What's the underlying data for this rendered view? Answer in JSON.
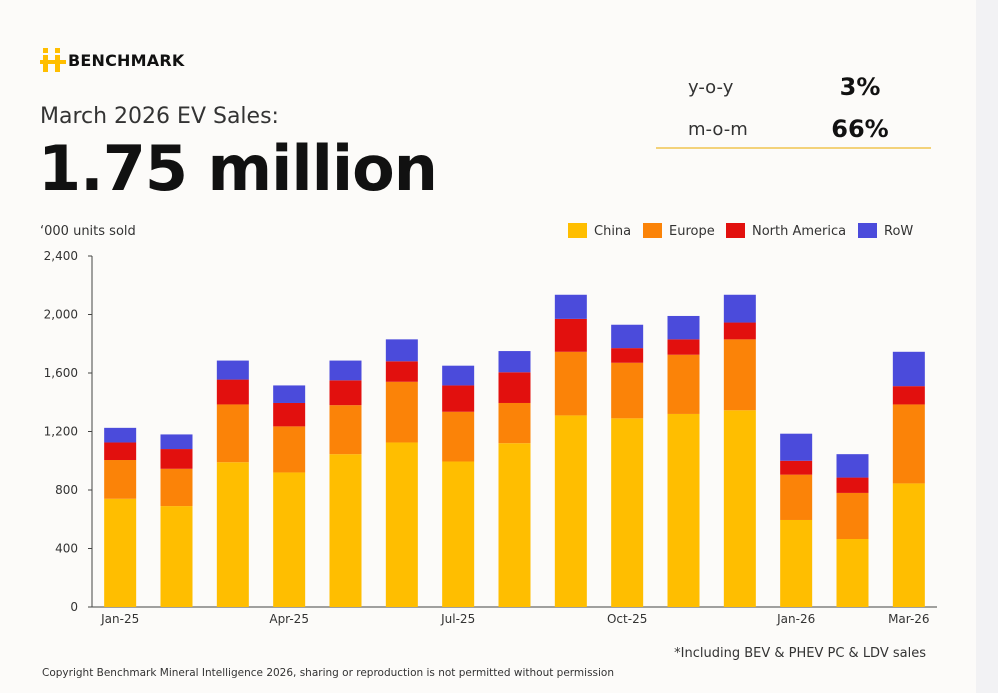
{
  "brand": {
    "name": "BENCHMARK"
  },
  "header": {
    "subtitle": "March 2026 EV Sales:",
    "headline": "1.75 million"
  },
  "stats": [
    {
      "label": "y-o-y",
      "value": "3%"
    },
    {
      "label": "m-o-m",
      "value": "66%"
    }
  ],
  "colors": {
    "China": "#ffbe00",
    "Europe": "#fb8308",
    "North America": "#e2100e",
    "RoW": "#4b4bdb",
    "accent": "#f3d27a"
  },
  "footnote": "*Including BEV & PHEV PC & LDV sales",
  "copyright": "Copyright Benchmark Mineral Intelligence 2026, sharing or reproduction is not permitted without permission",
  "chart_data": {
    "type": "bar",
    "stacked": true,
    "ylabel": "‘000 units sold",
    "ylim": [
      0,
      2400
    ],
    "yticks": [
      0,
      400,
      800,
      1200,
      1600,
      2000,
      2400
    ],
    "ytick_labels": [
      "0",
      "400",
      "800",
      "1,200",
      "1,600",
      "2,000",
      "2,400"
    ],
    "categories": [
      "Jan-25",
      "Feb-25",
      "Mar-25",
      "Apr-25",
      "May-25",
      "Jun-25",
      "Jul-25",
      "Aug-25",
      "Sep-25",
      "Oct-25",
      "Nov-25",
      "Dec-25",
      "Jan-26",
      "Feb-26",
      "Mar-26"
    ],
    "xtick_labels": {
      "0": "Jan-25",
      "3": "Apr-25",
      "6": "Jul-25",
      "9": "Oct-25",
      "12": "Jan-26",
      "14": "Mar-26"
    },
    "legend_position": "top-right",
    "grid": false,
    "series": [
      {
        "name": "China",
        "values": [
          740,
          690,
          990,
          920,
          1045,
          1125,
          995,
          1120,
          1310,
          1290,
          1320,
          1345,
          595,
          465,
          845
        ]
      },
      {
        "name": "Europe",
        "values": [
          265,
          255,
          395,
          315,
          335,
          415,
          340,
          275,
          435,
          380,
          405,
          485,
          310,
          315,
          540
        ]
      },
      {
        "name": "North America",
        "values": [
          120,
          135,
          170,
          160,
          170,
          140,
          180,
          210,
          225,
          100,
          105,
          115,
          95,
          105,
          125
        ]
      },
      {
        "name": "RoW",
        "values": [
          100,
          100,
          130,
          120,
          135,
          150,
          135,
          145,
          165,
          160,
          160,
          190,
          185,
          160,
          235
        ]
      }
    ]
  }
}
